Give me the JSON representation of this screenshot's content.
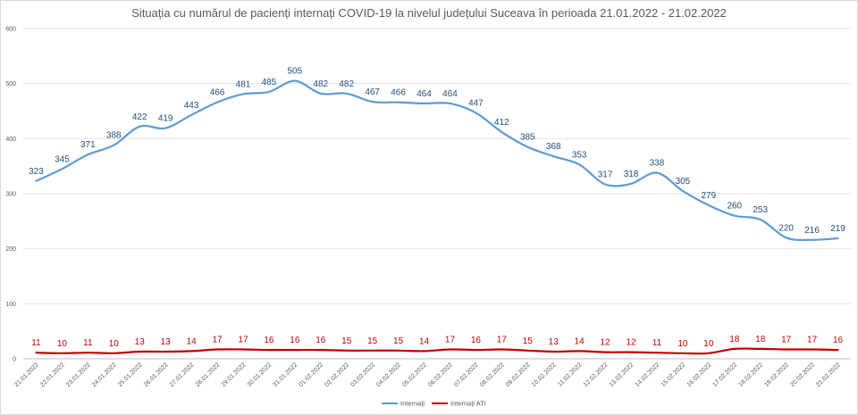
{
  "chart_data": {
    "type": "line",
    "title": "Situația cu numărul de pacienți internați COVID-19 la nivelul județului Suceava în perioada 21.01.2022 - 21.02.2022",
    "xlabel": "",
    "ylabel": "",
    "ylim": [
      0,
      600
    ],
    "yticks": [
      0,
      100,
      200,
      300,
      400,
      500,
      600
    ],
    "grid": true,
    "legend_position": "bottom",
    "categories": [
      "21.01.2022",
      "22.01.2022",
      "23.01.2022",
      "24.01.2022",
      "25.01.2022",
      "26.01.2022",
      "27.01.2022",
      "28.01.2022",
      "29.01.2022",
      "30.01.2022",
      "31.01.2022",
      "01.02.2022",
      "02.02.2022",
      "03.02.2022",
      "04.02.2022",
      "05.02.2022",
      "06.02.2022",
      "07.02.2022",
      "08.02.2022",
      "09.02.2022",
      "10.02.2022",
      "11.02.2022",
      "12.02.2022",
      "13.02.2022",
      "14.02.2022",
      "15.02.2022",
      "16.02.2022",
      "17.02.2022",
      "18.02.2022",
      "19.02.2022",
      "20.02.2022",
      "21.02.2022"
    ],
    "series": [
      {
        "name": "Internați",
        "color": "#5b9bd5",
        "label_color": "#1f4e79",
        "values": [
          323,
          345,
          371,
          388,
          422,
          419,
          443,
          466,
          481,
          485,
          505,
          482,
          482,
          467,
          466,
          464,
          464,
          447,
          412,
          385,
          368,
          353,
          317,
          318,
          338,
          305,
          279,
          260,
          253,
          220,
          216,
          219
        ]
      },
      {
        "name": "Internați ATI",
        "color": "#c00000",
        "label_color": "#c00000",
        "values": [
          11,
          10,
          11,
          10,
          13,
          13,
          14,
          17,
          17,
          16,
          16,
          16,
          15,
          15,
          15,
          14,
          17,
          16,
          17,
          15,
          13,
          14,
          12,
          12,
          11,
          10,
          10,
          18,
          18,
          17,
          17,
          16
        ]
      }
    ]
  }
}
